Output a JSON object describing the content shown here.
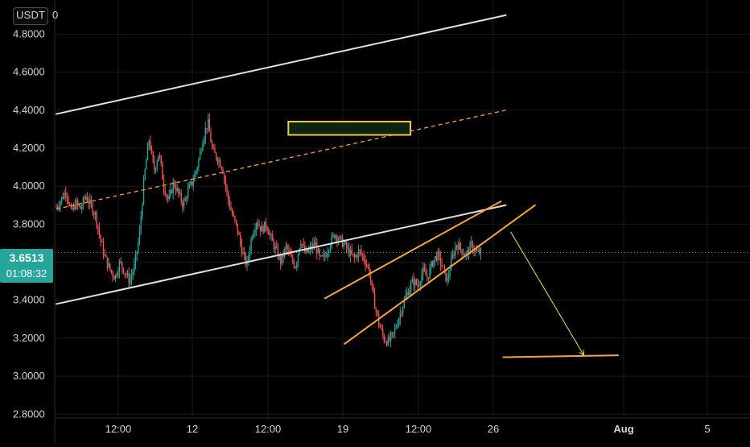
{
  "price_axis": {
    "currency": "USDT",
    "currency_suffix": "0",
    "ticks": [
      "4.8000",
      "4.6000",
      "4.4000",
      "4.2000",
      "4.0000",
      "3.8000",
      "3.6000",
      "3.4000",
      "3.2000",
      "3.0000",
      "2.8000"
    ]
  },
  "time_axis": {
    "ticks": [
      "12:00",
      "12",
      "12:00",
      "19",
      "12:00",
      "26",
      "Aug",
      "5"
    ],
    "bold_ticks": [
      "Aug"
    ]
  },
  "current_price": {
    "value": "3.6513",
    "countdown": "01:08:32"
  },
  "colors": {
    "background": "#000000",
    "up": "#26a69a",
    "down": "#ef5350",
    "trendline": "#e0e0e0",
    "pattern": "#f7a53b",
    "target_arrow": "#e6e65a",
    "grid": "#1a1a1a",
    "axis_text": "#d1d4dc"
  },
  "chart_data": {
    "type": "candlestick",
    "symbol_quote": "USDT",
    "ylim": [
      2.78,
      4.98
    ],
    "x_categories": [
      "12:00",
      "12",
      "12:00",
      "19",
      "12:00",
      "26",
      "Aug",
      "5"
    ],
    "grid": true,
    "last_price": 3.6513,
    "candle_path": [
      [
        0,
        3.89
      ],
      [
        2,
        3.93
      ],
      [
        4,
        3.98
      ],
      [
        6,
        3.86
      ],
      [
        8,
        3.91
      ],
      [
        10,
        3.88
      ],
      [
        12,
        3.95
      ],
      [
        14,
        3.9
      ],
      [
        16,
        3.85
      ],
      [
        18,
        3.72
      ],
      [
        20,
        3.62
      ],
      [
        22,
        3.56
      ],
      [
        24,
        3.52
      ],
      [
        26,
        3.6
      ],
      [
        28,
        3.55
      ],
      [
        30,
        3.5
      ],
      [
        32,
        3.58
      ],
      [
        34,
        3.74
      ],
      [
        36,
        4.05
      ],
      [
        38,
        4.25
      ],
      [
        40,
        4.08
      ],
      [
        42,
        4.18
      ],
      [
        44,
        4.0
      ],
      [
        46,
        3.92
      ],
      [
        48,
        4.02
      ],
      [
        50,
        3.96
      ],
      [
        52,
        3.9
      ],
      [
        54,
        3.98
      ],
      [
        56,
        4.03
      ],
      [
        58,
        4.12
      ],
      [
        60,
        4.25
      ],
      [
        62,
        4.34
      ],
      [
        64,
        4.18
      ],
      [
        66,
        4.15
      ],
      [
        68,
        4.1
      ],
      [
        70,
        3.95
      ],
      [
        72,
        3.85
      ],
      [
        74,
        3.78
      ],
      [
        76,
        3.66
      ],
      [
        78,
        3.58
      ],
      [
        80,
        3.74
      ],
      [
        82,
        3.82
      ],
      [
        84,
        3.77
      ],
      [
        86,
        3.8
      ],
      [
        88,
        3.72
      ],
      [
        90,
        3.66
      ],
      [
        92,
        3.6
      ],
      [
        94,
        3.68
      ],
      [
        96,
        3.62
      ],
      [
        98,
        3.58
      ],
      [
        100,
        3.72
      ],
      [
        102,
        3.64
      ],
      [
        104,
        3.67
      ],
      [
        106,
        3.7
      ],
      [
        108,
        3.61
      ],
      [
        110,
        3.63
      ],
      [
        112,
        3.7
      ],
      [
        114,
        3.75
      ],
      [
        116,
        3.72
      ],
      [
        118,
        3.69
      ],
      [
        120,
        3.65
      ],
      [
        122,
        3.62
      ],
      [
        124,
        3.66
      ],
      [
        126,
        3.62
      ],
      [
        128,
        3.56
      ],
      [
        130,
        3.4
      ],
      [
        132,
        3.28
      ],
      [
        134,
        3.2
      ],
      [
        136,
        3.18
      ],
      [
        138,
        3.22
      ],
      [
        140,
        3.3
      ],
      [
        142,
        3.38
      ],
      [
        144,
        3.45
      ],
      [
        146,
        3.5
      ],
      [
        148,
        3.48
      ],
      [
        150,
        3.55
      ],
      [
        152,
        3.52
      ],
      [
        154,
        3.6
      ],
      [
        156,
        3.64
      ],
      [
        158,
        3.58
      ],
      [
        160,
        3.5
      ],
      [
        162,
        3.62
      ],
      [
        164,
        3.7
      ],
      [
        166,
        3.66
      ],
      [
        168,
        3.64
      ],
      [
        170,
        3.69
      ],
      [
        172,
        3.65
      ],
      [
        174,
        3.6513
      ]
    ],
    "drawings": [
      {
        "name": "upper-channel-line",
        "type": "trendline",
        "from": [
          0,
          4.38
        ],
        "to": [
          184,
          4.9
        ]
      },
      {
        "name": "lower-channel-line",
        "type": "trendline",
        "from": [
          0,
          3.38
        ],
        "to": [
          184,
          3.9
        ]
      },
      {
        "name": "channel-midline",
        "type": "dashed-trendline",
        "from": [
          0,
          3.88
        ],
        "to": [
          184,
          4.4
        ]
      },
      {
        "name": "resistance-zone",
        "type": "rectangle",
        "from": [
          95,
          4.34
        ],
        "to": [
          145,
          4.27
        ]
      },
      {
        "name": "rising-wedge-upper",
        "type": "trendline",
        "from": [
          110,
          3.41
        ],
        "to": [
          182,
          3.92
        ]
      },
      {
        "name": "rising-wedge-lower",
        "type": "trendline",
        "from": [
          118,
          3.17
        ],
        "to": [
          196,
          3.9
        ]
      },
      {
        "name": "breakdown-target-arrow",
        "type": "arrow",
        "from": [
          186,
          3.76
        ],
        "to": [
          216,
          3.11
        ]
      },
      {
        "name": "target-level-line",
        "type": "trendline",
        "from": [
          183,
          3.1
        ],
        "to": [
          230,
          3.11
        ]
      }
    ]
  }
}
